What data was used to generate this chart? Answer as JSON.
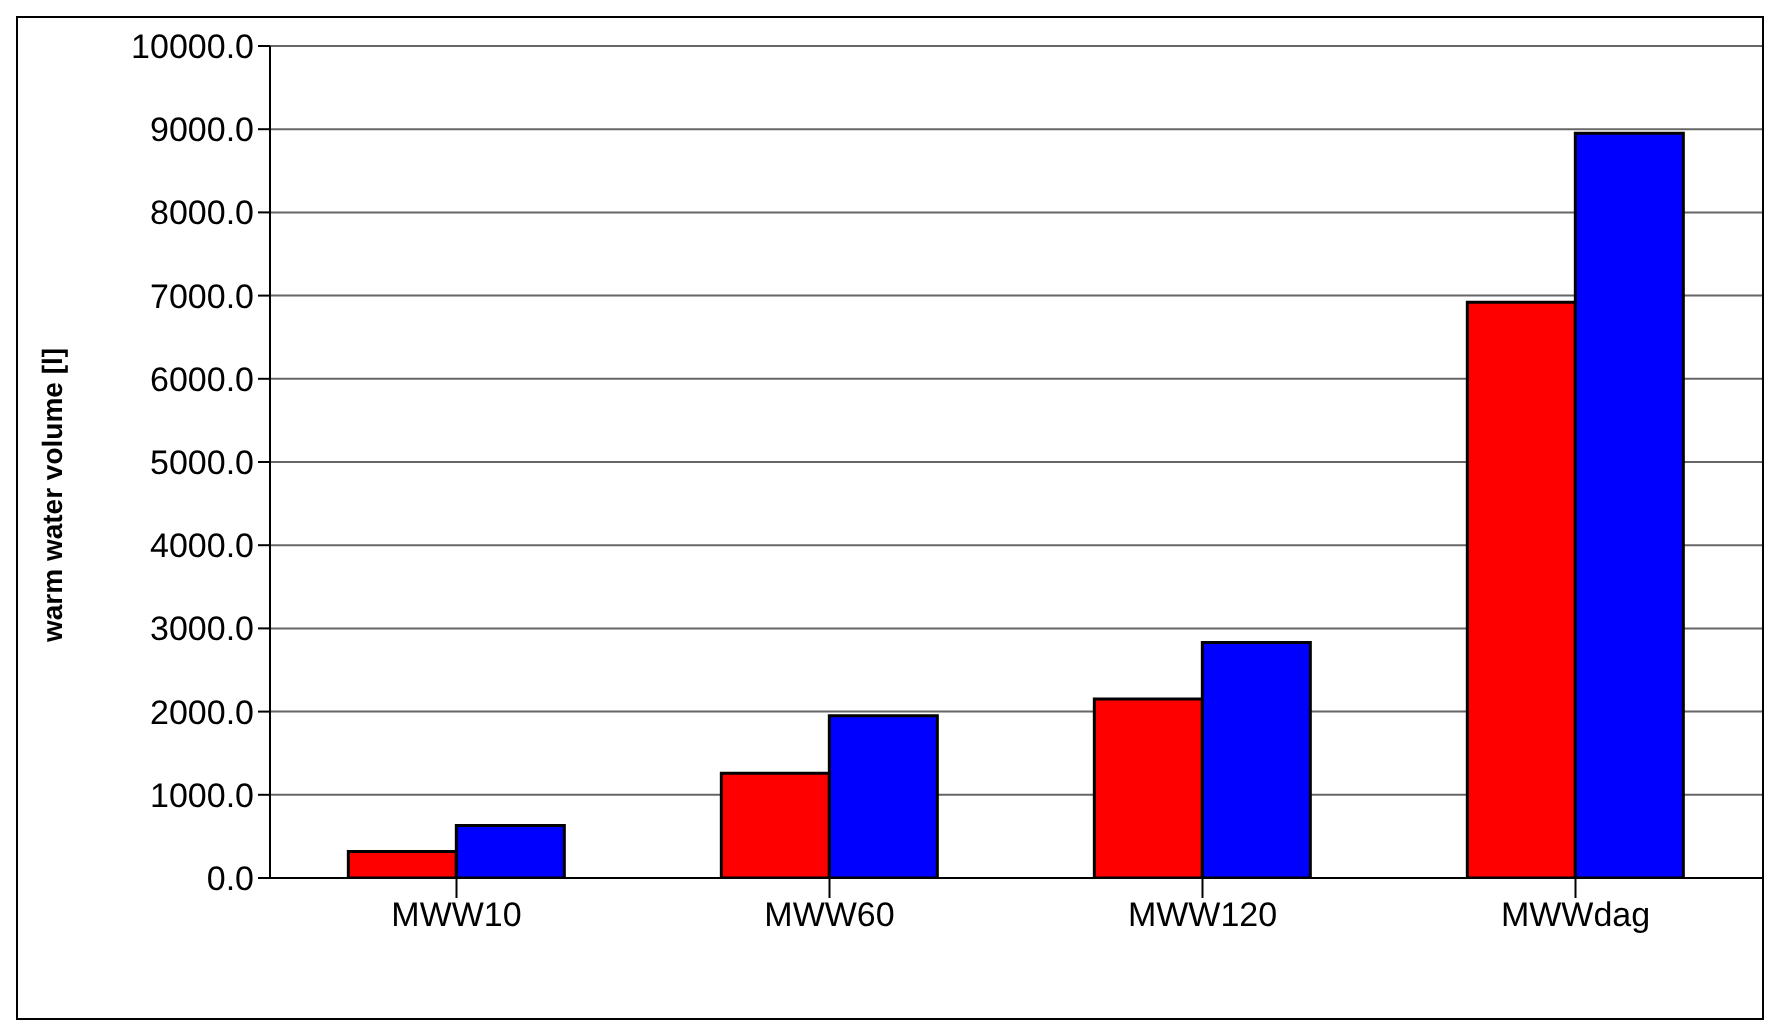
{
  "chart_data": {
    "type": "bar",
    "ylabel": "warm water volume [l]",
    "categories": [
      "MWW10",
      "MWW60",
      "MWW120",
      "MWWdag"
    ],
    "series": [
      {
        "color": "#ff0000",
        "values": [
          320,
          1260,
          2150,
          6920
        ]
      },
      {
        "color": "#0000ff",
        "values": [
          630,
          1950,
          2830,
          8950
        ]
      }
    ],
    "ylim": [
      0,
      10000
    ],
    "yticks": [
      {
        "value": 0,
        "label": "0.0"
      },
      {
        "value": 1000,
        "label": "1000.0"
      },
      {
        "value": 2000,
        "label": "2000.0"
      },
      {
        "value": 3000,
        "label": "3000.0"
      },
      {
        "value": 4000,
        "label": "4000.0"
      },
      {
        "value": 5000,
        "label": "5000.0"
      },
      {
        "value": 6000,
        "label": "6000.0"
      },
      {
        "value": 7000,
        "label": "7000.0"
      },
      {
        "value": 8000,
        "label": "8000.0"
      },
      {
        "value": 9000,
        "label": "9000.0"
      },
      {
        "value": 10000,
        "label": "10000.0"
      }
    ],
    "grid": "y"
  }
}
